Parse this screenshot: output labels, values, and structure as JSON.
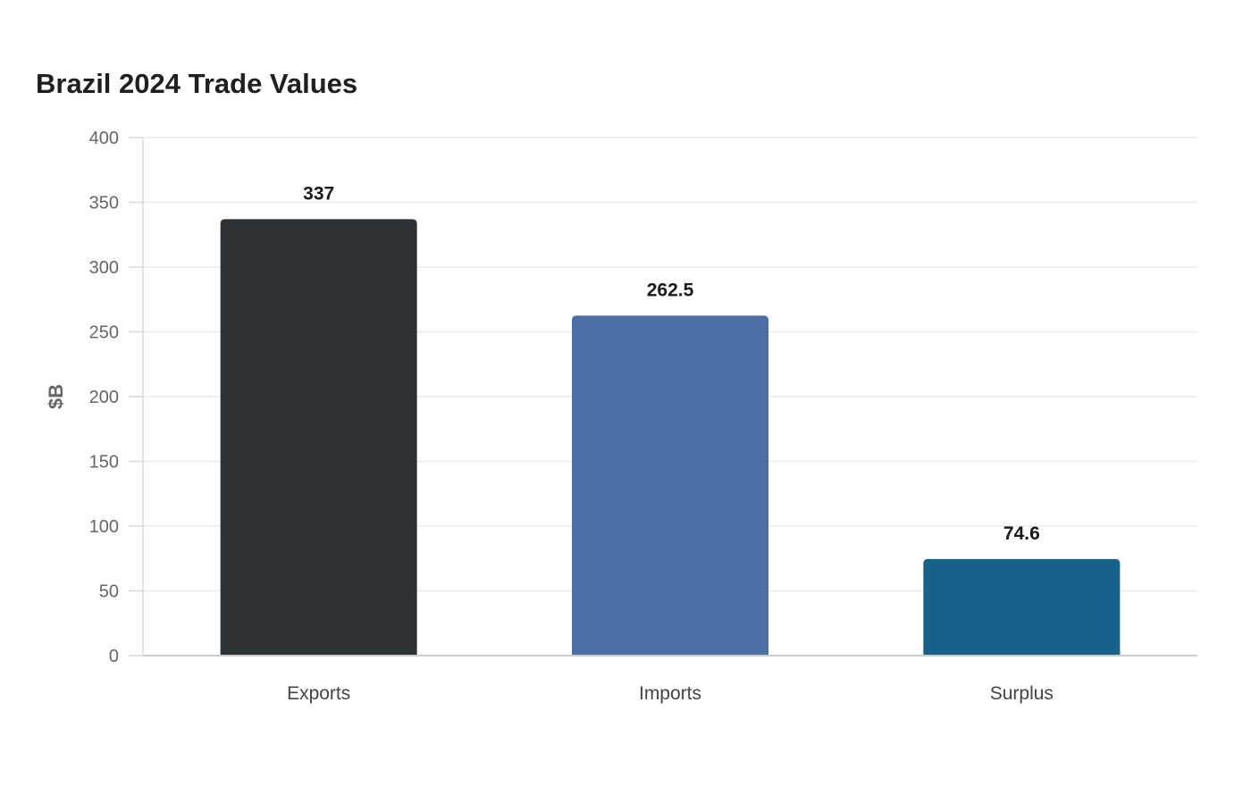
{
  "chart_data": {
    "type": "bar",
    "title": "Brazil 2024 Trade Values",
    "xlabel": "",
    "ylabel": "$B",
    "categories": [
      "Exports",
      "Imports",
      "Surplus"
    ],
    "values": [
      337,
      262.5,
      74.6
    ],
    "value_labels": [
      "337",
      "262.5",
      "74.6"
    ],
    "colors": [
      "#2e3436",
      "#4a6fa5",
      "#17618a"
    ],
    "ylim": [
      0,
      400
    ],
    "yticks": [
      0,
      50,
      100,
      150,
      200,
      250,
      300,
      350,
      400
    ],
    "grid": true,
    "legend": "none"
  }
}
